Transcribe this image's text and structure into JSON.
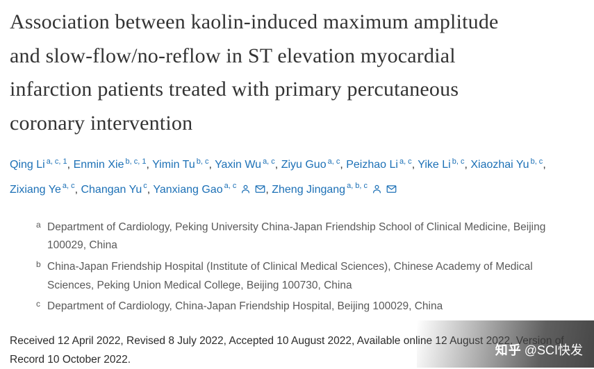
{
  "title": "Association between kaolin-induced maximum amplitude and slow-flow/no-reflow in ST elevation myocardial infarction patients treated with primary percutaneous coronary intervention",
  "authors": [
    {
      "name": "Qing Li",
      "sup": "a, c, 1",
      "icons": []
    },
    {
      "name": "Enmin Xie",
      "sup": "b, c, 1",
      "icons": []
    },
    {
      "name": "Yimin Tu",
      "sup": "b, c",
      "icons": []
    },
    {
      "name": "Yaxin Wu",
      "sup": "a, c",
      "icons": []
    },
    {
      "name": "Ziyu Guo",
      "sup": "a, c",
      "icons": []
    },
    {
      "name": "Peizhao Li",
      "sup": "a, c",
      "icons": []
    },
    {
      "name": "Yike Li",
      "sup": "b, c",
      "icons": []
    },
    {
      "name": "Xiaozhai Yu",
      "sup": "b, c",
      "icons": []
    },
    {
      "name": "Zixiang Ye",
      "sup": "a, c",
      "icons": []
    },
    {
      "name": "Changan Yu",
      "sup": "c",
      "icons": []
    },
    {
      "name": "Yanxiang Gao",
      "sup": "a, c",
      "icons": [
        "person-icon",
        "envelope-icon"
      ]
    },
    {
      "name": "Zheng Jingang",
      "sup": "a, b, c",
      "icons": [
        "person-icon",
        "envelope-icon"
      ]
    }
  ],
  "author_separator": ", ",
  "affiliations": [
    {
      "label": "a",
      "text": "Department of Cardiology, Peking University China-Japan Friendship School of Clinical Medicine, Beijing 100029, China"
    },
    {
      "label": "b",
      "text": "China-Japan Friendship Hospital (Institute of Clinical Medical Sciences), Chinese Academy of Medical Sciences, Peking Union Medical College, Beijing 100730, China"
    },
    {
      "label": "c",
      "text": "Department of Cardiology, China-Japan Friendship Hospital, Beijing 100029, China"
    }
  ],
  "dates_line": "Received 12 April 2022, Revised 8 July 2022, Accepted 10 August 2022, Available online 12 August 2022, Version of Record 10 October 2022.",
  "watermark": {
    "logo_text": "知乎",
    "handle_text": "@SCI快发"
  },
  "colors": {
    "link": "#1c70b6",
    "title_text": "#333333",
    "affiliation_text": "#595959",
    "dates_text": "#2b2b2b"
  }
}
